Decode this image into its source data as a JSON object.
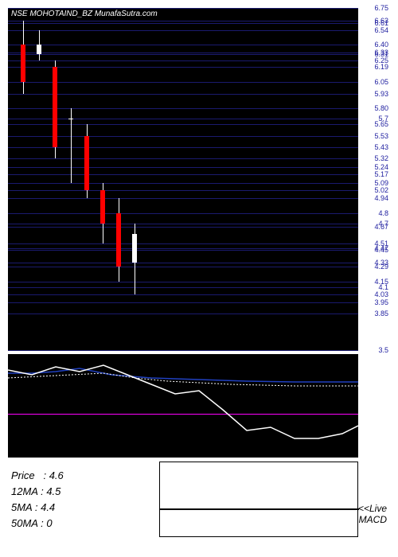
{
  "title": "NSE MOHOTAIND_BZ MunafaSutra.com",
  "main_chart": {
    "background_color": "#000000",
    "grid_color": "#1a1a6e",
    "ymin": 3.5,
    "ymax": 6.75,
    "y_ticks": [
      "6.75",
      "6.63",
      "6.61",
      "6.54",
      "6.40",
      "6.33",
      "6.31",
      "6.25",
      "6.19",
      "6.05",
      "5.93",
      "5.80",
      "5.7",
      "5.65",
      "5.53",
      "5.43",
      "5.32",
      "5.24",
      "5.17",
      "5.09",
      "5.02",
      "4.94",
      "4.8",
      "4.7",
      "4.67",
      "4.51",
      "4.47",
      "4.45",
      "4.33",
      "4.29",
      "4.15",
      "4.1",
      "4.03",
      "3.95",
      "3.85",
      "3.5"
    ],
    "candles": [
      {
        "x": 14,
        "open": 6.4,
        "high": 6.63,
        "low": 5.93,
        "close": 6.05,
        "color": "#ff0000"
      },
      {
        "x": 34,
        "open": 6.4,
        "high": 6.54,
        "low": 6.25,
        "close": 6.31,
        "color": "#ffffff"
      },
      {
        "x": 54,
        "open": 6.19,
        "high": 6.25,
        "low": 5.32,
        "close": 5.43,
        "color": "#ff0000"
      },
      {
        "x": 74,
        "open": 5.7,
        "high": 5.8,
        "low": 5.09,
        "close": 5.7,
        "color": "#ffffff"
      },
      {
        "x": 94,
        "open": 5.53,
        "high": 5.65,
        "low": 4.94,
        "close": 5.02,
        "color": "#ff0000"
      },
      {
        "x": 114,
        "open": 5.02,
        "high": 5.09,
        "low": 4.51,
        "close": 4.7,
        "color": "#ff0000"
      },
      {
        "x": 134,
        "open": 4.8,
        "high": 4.94,
        "low": 4.15,
        "close": 4.29,
        "color": "#ff0000"
      },
      {
        "x": 154,
        "open": 4.33,
        "high": 4.7,
        "low": 4.03,
        "close": 4.6,
        "color": "#ffffff"
      }
    ]
  },
  "macd_panel": {
    "background_color": "#000000",
    "zero_line_color": "#ff00ff",
    "zero_line_y": 75,
    "blue_line_color": "#2040c0",
    "white_line_color": "#ffffff",
    "dotted_line_color": "#ffffff",
    "blue_line": [
      [
        0,
        24
      ],
      [
        30,
        24
      ],
      [
        60,
        22
      ],
      [
        90,
        18
      ],
      [
        130,
        26
      ],
      [
        180,
        30
      ],
      [
        240,
        32
      ],
      [
        300,
        34
      ],
      [
        360,
        35
      ],
      [
        420,
        35
      ],
      [
        440,
        35
      ]
    ],
    "dotted_line": [
      [
        0,
        30
      ],
      [
        40,
        28
      ],
      [
        80,
        26
      ],
      [
        120,
        24
      ],
      [
        160,
        30
      ],
      [
        200,
        34
      ],
      [
        240,
        36
      ],
      [
        280,
        38
      ],
      [
        320,
        39
      ],
      [
        360,
        40
      ],
      [
        400,
        40
      ],
      [
        440,
        40
      ]
    ],
    "white_line": [
      [
        0,
        20
      ],
      [
        30,
        26
      ],
      [
        60,
        16
      ],
      [
        90,
        22
      ],
      [
        120,
        14
      ],
      [
        150,
        26
      ],
      [
        180,
        38
      ],
      [
        210,
        50
      ],
      [
        240,
        46
      ],
      [
        270,
        70
      ],
      [
        300,
        96
      ],
      [
        330,
        92
      ],
      [
        360,
        106
      ],
      [
        390,
        106
      ],
      [
        420,
        100
      ],
      [
        440,
        90
      ]
    ]
  },
  "info": {
    "price_label": "Price",
    "price_value": "4.6",
    "ma12_label": "12MA",
    "ma12_value": "4.5",
    "ma5_label": "5MA",
    "ma5_value": "4.4",
    "ma50_label": "50MA",
    "ma50_value": "0",
    "live_label": "<<Live",
    "macd_label": "MACD"
  },
  "styling": {
    "text_color_light": "#ffffff",
    "text_color_dark": "#000000",
    "tick_color": "#2020a0",
    "font_size_title": 10,
    "font_size_tick": 9,
    "font_size_info": 13
  }
}
